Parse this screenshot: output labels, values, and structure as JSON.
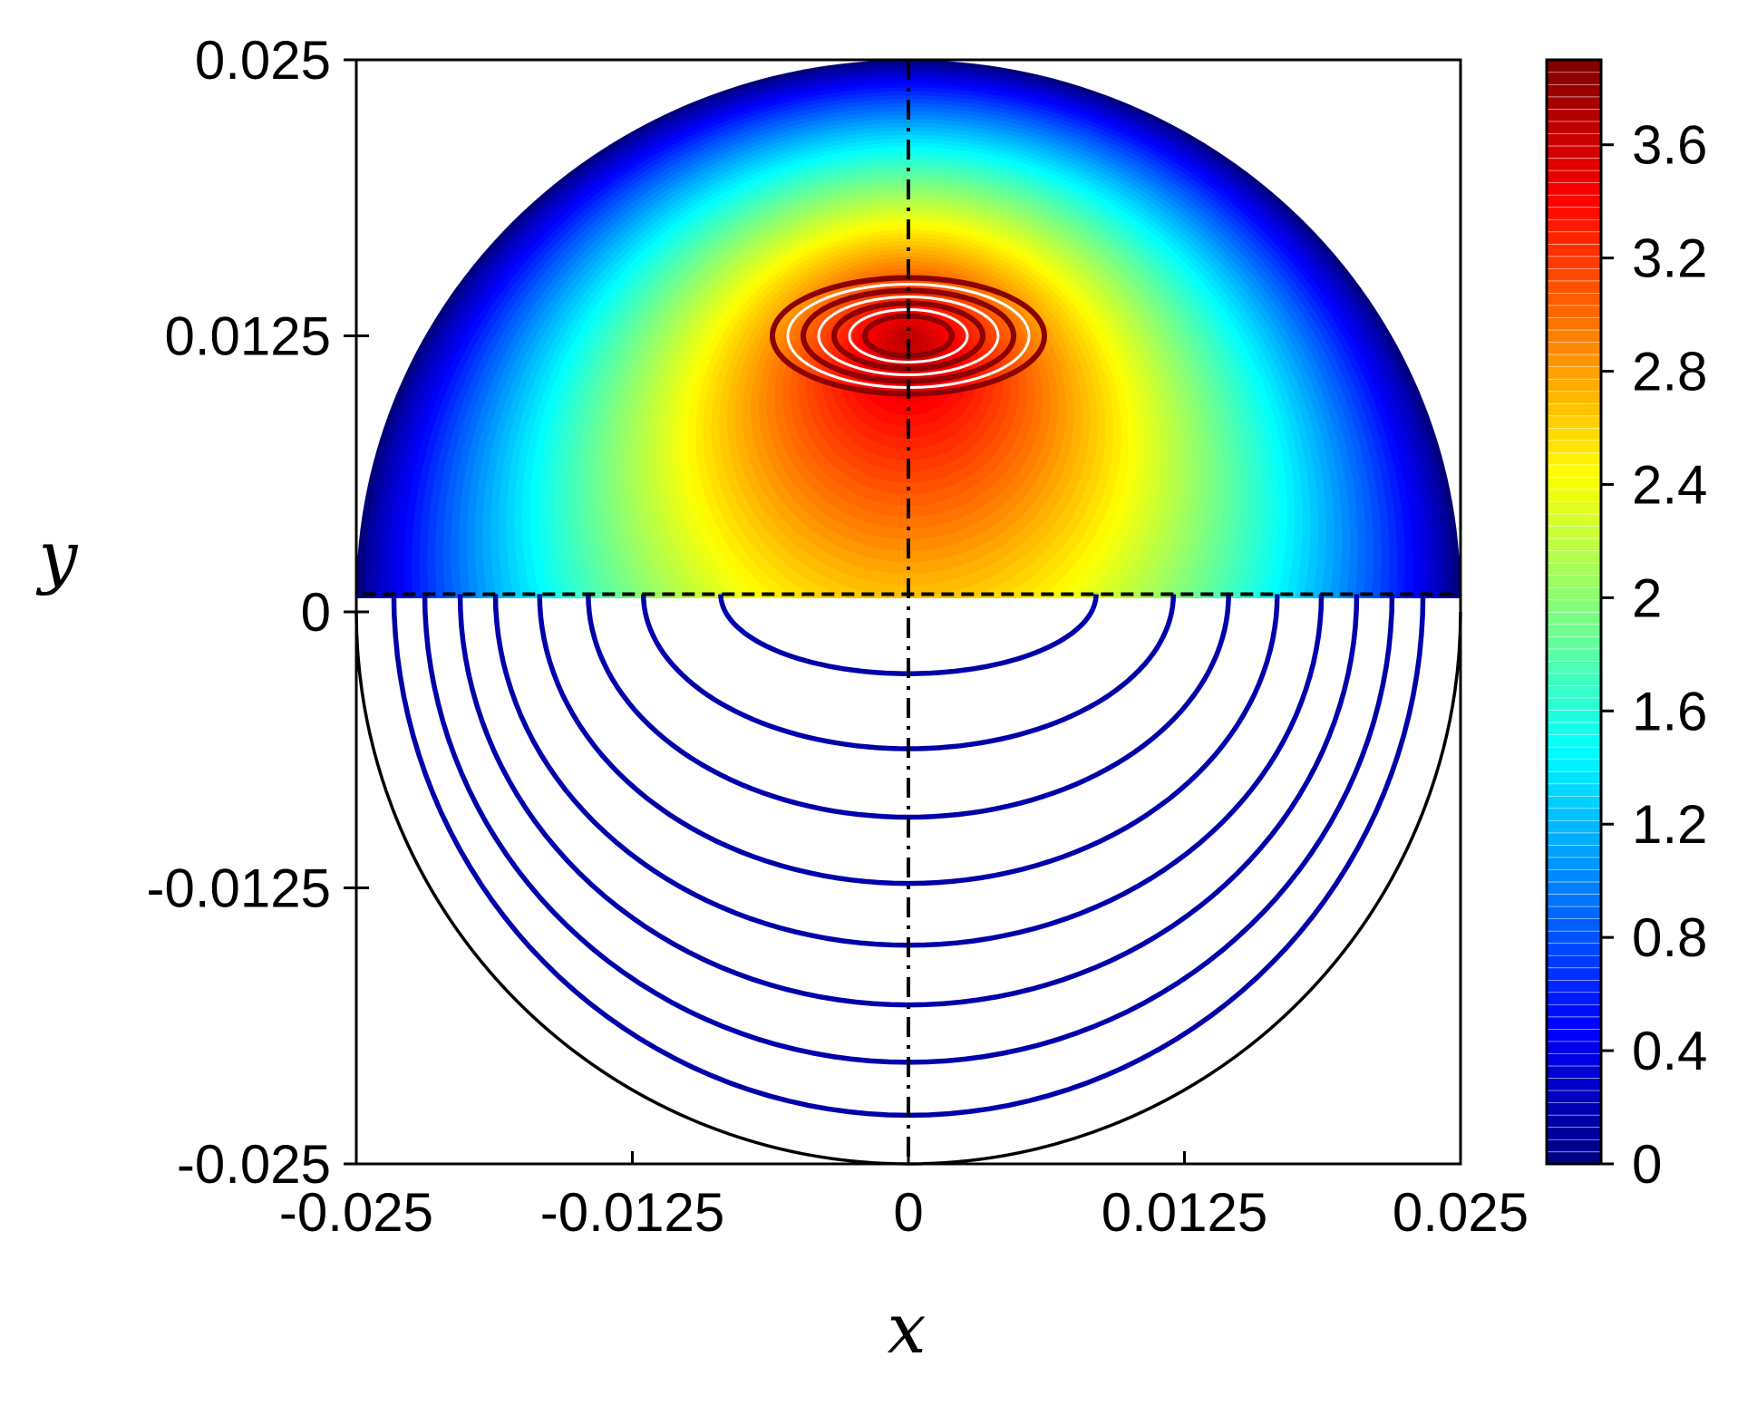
{
  "chart_data": {
    "type": "contour",
    "xlabel": "x",
    "ylabel": "y",
    "xlim": [
      -0.025,
      0.025
    ],
    "ylim": [
      -0.025,
      0.025
    ],
    "x_ticks": [
      -0.025,
      -0.0125,
      0,
      0.0125,
      0.025
    ],
    "x_tick_labels": [
      "-0.025",
      "-0.0125",
      "0",
      "0.0125",
      "0.025"
    ],
    "y_ticks": [
      -0.025,
      -0.0125,
      0,
      0.0125,
      0.025
    ],
    "y_tick_labels": [
      "-0.025",
      "-0.0125",
      "0",
      "0.0125",
      "0.025"
    ],
    "grid": false,
    "colorbar": {
      "colormap": "jet",
      "range": [
        0,
        3.9
      ],
      "ticks": [
        0,
        0.4,
        0.8,
        1.2,
        1.6,
        2,
        2.4,
        2.8,
        3.2,
        3.6
      ],
      "tick_labels": [
        "0",
        "0.4",
        "0.8",
        "1.2",
        "1.6",
        "2",
        "2.4",
        "2.8",
        "3.2",
        "3.6"
      ],
      "colors": [
        "#00007f",
        "#0000ff",
        "#007fff",
        "#00ffff",
        "#7fff7f",
        "#ffff00",
        "#ff7f00",
        "#ff0000",
        "#7f0000"
      ]
    },
    "upper_half": {
      "domain": "semicircle y >= 0.0008, radius 0.025",
      "max_value": 3.9,
      "max_location": [
        0,
        0.0125
      ]
    },
    "lower_half": {
      "contour_crossings_at_x0": [
        -0.0028,
        -0.0062,
        -0.0093,
        -0.0123,
        -0.0151,
        -0.0178,
        -0.0204,
        -0.0228
      ],
      "endpoints_on_y_axis": [
        0.0085,
        0.012,
        0.0145,
        0.0167,
        0.0187,
        0.0203,
        0.0219,
        0.0233
      ],
      "line_color": "#0000aa"
    },
    "reference_lines": {
      "vertical_dashdot_x": 0,
      "horizontal_dashed_y": 0.0008
    }
  }
}
